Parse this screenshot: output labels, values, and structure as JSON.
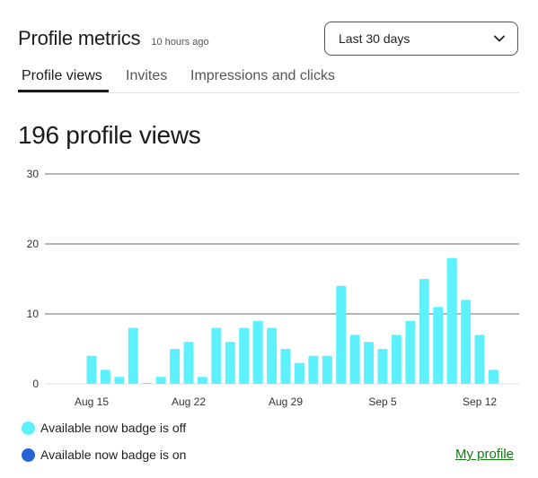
{
  "header": {
    "title": "Profile metrics",
    "updated": "10 hours ago"
  },
  "range_select": {
    "selected": "Last 30 days",
    "icon": "chevron-down-icon"
  },
  "tabs": [
    {
      "label": "Profile views",
      "active": true
    },
    {
      "label": "Invites",
      "active": false
    },
    {
      "label": "Impressions and clicks",
      "active": false
    }
  ],
  "summary": {
    "total": "196 profile views"
  },
  "legend": [
    {
      "label": "Available now badge is off",
      "color": "#5cf1fd"
    },
    {
      "label": "Available now badge is on",
      "color": "#2563d6"
    }
  ],
  "footer": {
    "link": "My profile"
  },
  "colors": {
    "accent_link": "#127b11",
    "bar_off": "#5cf1fd",
    "bar_on": "#2563d6"
  },
  "chart_data": {
    "type": "bar",
    "ylim": [
      0,
      30
    ],
    "yticks": [
      0,
      10,
      20,
      30
    ],
    "grid": true,
    "legend_position": "bottom-left",
    "xtick_labels": [
      "Aug 15",
      "Aug 22",
      "Aug 29",
      "Sep 5",
      "Sep 12"
    ],
    "series": [
      {
        "name": "Available now badge is off",
        "values": [
          4,
          2,
          1,
          8,
          0,
          1,
          5,
          6,
          1,
          8,
          6,
          8,
          9,
          8,
          5,
          3,
          4,
          4,
          14,
          7,
          6,
          5,
          7,
          9,
          15,
          11,
          18,
          12,
          7,
          2
        ]
      }
    ]
  }
}
